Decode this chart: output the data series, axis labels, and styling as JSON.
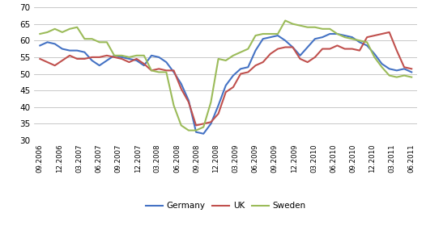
{
  "ylim": [
    30,
    70
  ],
  "yticks": [
    30,
    35,
    40,
    45,
    50,
    55,
    60,
    65,
    70
  ],
  "xtick_labels": [
    "09.2006",
    "12.2006",
    "03.2007",
    "06.2007",
    "09.2007",
    "12.2007",
    "03.2008",
    "06.2008",
    "09.2008",
    "12.2008",
    "03.2009",
    "06.2009",
    "09.2009",
    "12.2009",
    "03.2010",
    "06.2010",
    "09.2010",
    "12.2010",
    "03.2011",
    "06.2011"
  ],
  "germany": [
    58.5,
    59.5,
    59.0,
    57.5,
    57.0,
    57.0,
    56.5,
    54.0,
    52.5,
    54.0,
    55.5,
    55.0,
    54.5,
    54.0,
    52.5,
    55.5,
    55.0,
    53.5,
    50.5,
    47.0,
    42.0,
    32.5,
    32.0,
    35.0,
    40.5,
    46.5,
    49.5,
    51.5,
    52.0,
    57.0,
    60.5,
    61.0,
    61.5,
    60.0,
    58.0,
    55.5,
    58.0,
    60.5,
    61.0,
    62.0,
    62.0,
    61.5,
    61.0,
    59.5,
    58.5,
    56.0,
    53.0,
    51.5,
    51.0,
    51.5,
    50.5
  ],
  "uk": [
    54.5,
    53.5,
    52.5,
    54.0,
    55.5,
    54.5,
    54.5,
    55.0,
    55.0,
    55.5,
    55.0,
    54.5,
    53.5,
    54.5,
    53.0,
    51.0,
    51.5,
    51.0,
    51.0,
    45.5,
    41.5,
    34.5,
    35.0,
    35.5,
    38.0,
    44.5,
    46.0,
    50.0,
    50.5,
    52.5,
    53.5,
    56.0,
    57.5,
    58.0,
    58.0,
    54.5,
    53.5,
    55.0,
    57.5,
    57.5,
    58.5,
    57.5,
    57.5,
    57.0,
    61.0,
    61.5,
    62.0,
    62.5,
    57.0,
    52.0,
    51.5
  ],
  "sweden": [
    62.0,
    62.5,
    63.5,
    62.5,
    63.5,
    64.0,
    60.5,
    60.5,
    59.5,
    59.5,
    55.5,
    55.5,
    55.0,
    55.5,
    55.5,
    51.0,
    50.5,
    50.5,
    40.5,
    34.5,
    33.0,
    33.0,
    34.0,
    41.5,
    54.5,
    54.0,
    55.5,
    56.5,
    57.5,
    61.5,
    62.0,
    62.0,
    62.0,
    66.0,
    65.0,
    64.5,
    64.0,
    64.0,
    63.5,
    63.5,
    62.0,
    61.0,
    60.5,
    60.0,
    59.5,
    55.0,
    52.0,
    49.5,
    49.0,
    49.5,
    49.0
  ],
  "n_points": 51,
  "n_labels": 20,
  "germany_color": "#4472C4",
  "uk_color": "#C0504D",
  "sweden_color": "#9BBB59",
  "line_width": 1.5,
  "legend_labels": [
    "Germany",
    "UK",
    "Sweden"
  ],
  "bg_color": "#FFFFFF",
  "grid_color": "#BFBFBF"
}
